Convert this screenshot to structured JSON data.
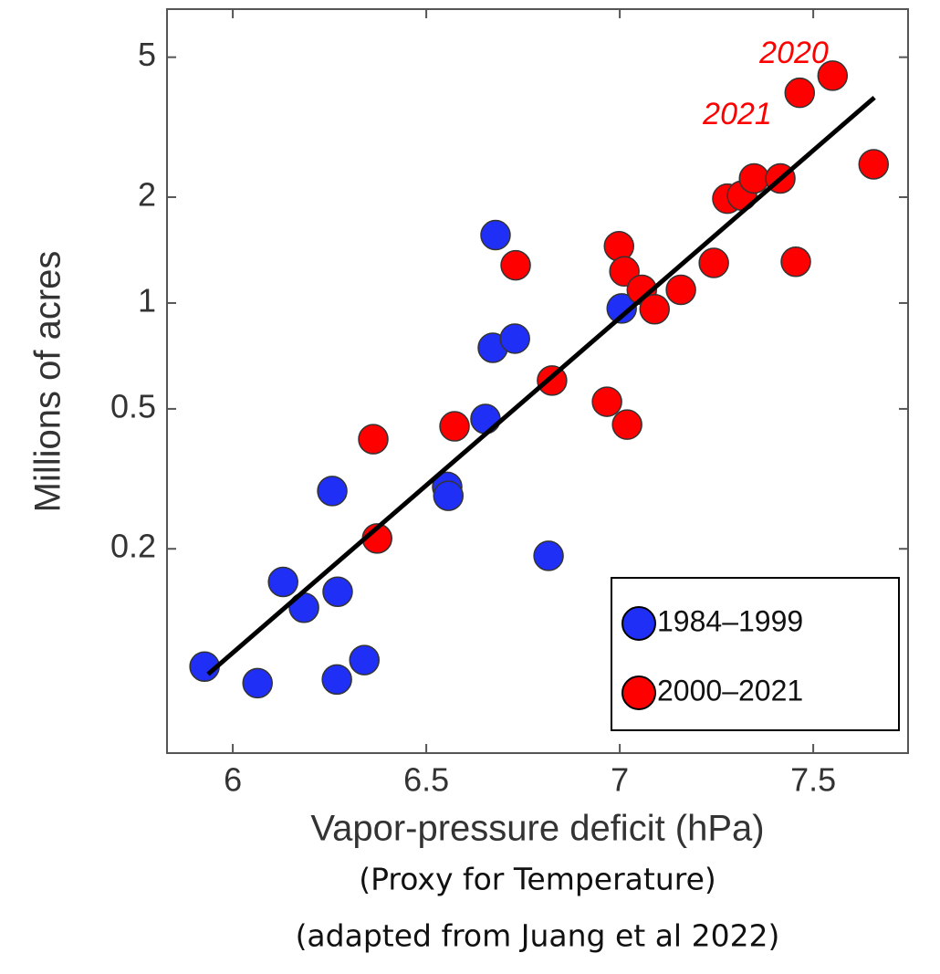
{
  "chart_data": {
    "type": "scatter",
    "x_label": "Vapor-pressure deficit (hPa)",
    "y_label": "Millions of acres",
    "notes": [
      "(Proxy for Temperature)",
      "(adapted from Juang et al 2022)"
    ],
    "annotations": [
      "2020",
      "2021"
    ],
    "xlim": [
      5.83,
      7.745
    ],
    "xticks": [
      6,
      6.5,
      7,
      7.5
    ],
    "ylim": [
      0.0525,
      6.85
    ],
    "yticks": [
      0.2,
      0.5,
      1,
      2,
      5
    ],
    "log_y": true,
    "legend": "lower right",
    "series": [
      {
        "name": "1984–1999",
        "color": "#1f2ff5",
        "x": [
          5.927,
          6.064,
          6.13,
          6.184,
          6.257,
          6.271,
          6.269,
          6.34,
          6.554,
          6.557,
          6.653,
          6.672,
          6.679,
          6.729,
          6.816,
          7.005
        ],
        "values": [
          0.0925,
          0.083,
          0.161,
          0.136,
          0.292,
          0.151,
          0.085,
          0.0965,
          0.3,
          0.283,
          0.468,
          0.746,
          1.56,
          0.792,
          0.191,
          0.965
        ]
      },
      {
        "name": "2000–2021",
        "color": "#ff0000",
        "x": [
          6.363,
          6.373,
          6.573,
          6.731,
          6.825,
          6.998,
          7.012,
          6.967,
          7.019,
          7.057,
          7.09,
          7.158,
          7.243,
          7.278,
          7.316,
          7.347,
          7.415,
          7.455,
          7.465,
          7.55,
          7.656
        ],
        "values": [
          0.41,
          0.214,
          0.446,
          1.28,
          0.602,
          1.45,
          1.23,
          0.524,
          0.451,
          1.09,
          0.96,
          1.09,
          1.3,
          1.98,
          2.02,
          2.26,
          2.26,
          1.31,
          3.96,
          4.43,
          2.48
        ]
      }
    ],
    "fit_line": {
      "color": "#000000",
      "x": [
        5.936,
        7.658
      ],
      "values": [
        0.088,
        3.84
      ]
    }
  }
}
